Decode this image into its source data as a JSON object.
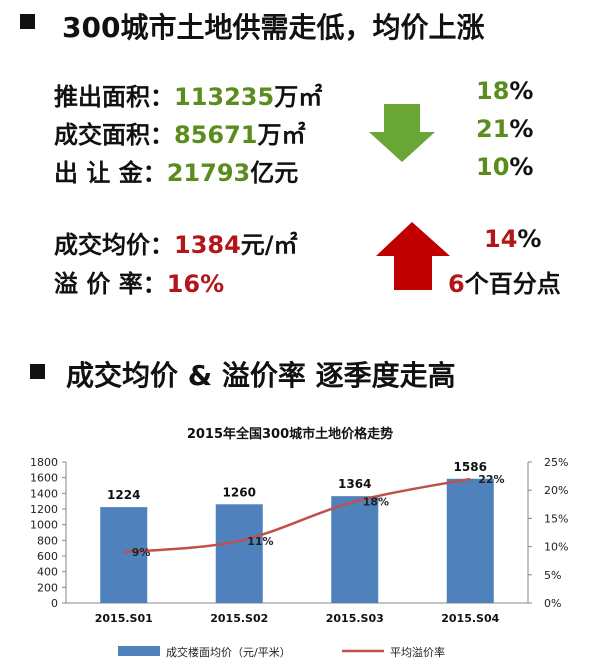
{
  "section1": {
    "heading": "300城市土地供需走低，均价上涨",
    "supply_rows": [
      {
        "label": "推出面积：",
        "value": "113235",
        "unit": "万㎡",
        "change": "18",
        "change_unit": "%"
      },
      {
        "label": "成交面积：",
        "value": "85671",
        "unit": "万㎡",
        "change": "21",
        "change_unit": "%"
      },
      {
        "label": "出 让 金：",
        "value": "21793",
        "unit": "亿元",
        "change": "10",
        "change_unit": "%"
      }
    ],
    "price_rows": [
      {
        "label": "成交均价：",
        "value": "1384",
        "unit": "元/㎡",
        "change": "14",
        "change_unit": "%"
      },
      {
        "label": "溢 价 率：",
        "value": "16%",
        "unit": "",
        "change": "6",
        "change_unit": "个百分点"
      }
    ],
    "down_arrow_color": "#6aa636",
    "up_arrow_color": "#c00000"
  },
  "section2": {
    "heading": "成交均价 & 溢价率  逐季度走高"
  },
  "chart_data": {
    "type": "bar",
    "title": "2015年全国300城市土地价格走势",
    "categories": [
      "2015.S01",
      "2015.S02",
      "2015.S03",
      "2015.S04"
    ],
    "series": [
      {
        "name": "成交楼面均价（元/平米）",
        "type": "bar",
        "axis": "left",
        "values": [
          1224,
          1260,
          1364,
          1586
        ],
        "labels": [
          "1224",
          "1260",
          "1364",
          "1586"
        ],
        "color": "#4f81bd"
      },
      {
        "name": "平均溢价率",
        "type": "line",
        "axis": "right",
        "values": [
          9,
          11,
          18,
          22
        ],
        "labels": [
          "9%",
          "11%",
          "18%",
          "22%"
        ],
        "color": "#c0504d"
      }
    ],
    "y_left": {
      "min": 0,
      "max": 1800,
      "ticks": [
        "0",
        "200",
        "400",
        "600",
        "800",
        "1000",
        "1200",
        "1400",
        "1600",
        "1800"
      ]
    },
    "y_right": {
      "min": 0,
      "max": 25,
      "ticks": [
        "0%",
        "5%",
        "10%",
        "15%",
        "20%",
        "25%"
      ]
    },
    "grid": false,
    "legend_position": "bottom"
  }
}
